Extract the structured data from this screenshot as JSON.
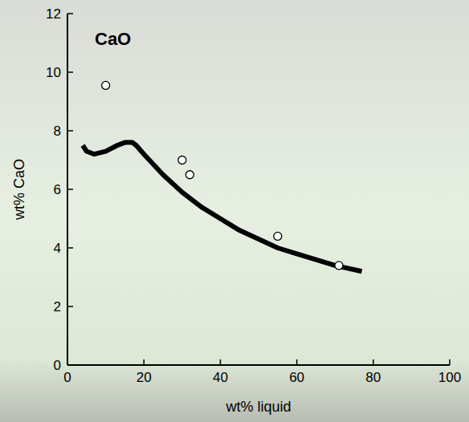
{
  "chart_data": {
    "type": "line",
    "title": "CaO",
    "x_label": "wt% liquid",
    "y_label": "wt% CaO",
    "xlim": [
      0,
      100
    ],
    "xticks": [
      0,
      20,
      40,
      60,
      80,
      100
    ],
    "ylim": [
      0,
      12
    ],
    "yticks": [
      0,
      2,
      4,
      6,
      8,
      10,
      12
    ],
    "grid": false,
    "series": [
      {
        "type": "line",
        "color": "#000000",
        "line_style": "solid",
        "x": [
          4,
          5,
          7,
          10,
          13,
          15,
          17,
          18,
          20,
          25,
          30,
          35,
          40,
          45,
          50,
          55,
          60,
          65,
          70,
          77
        ],
        "values": [
          7.5,
          7.3,
          7.2,
          7.3,
          7.5,
          7.6,
          7.6,
          7.5,
          7.2,
          6.5,
          5.9,
          5.4,
          5.0,
          4.6,
          4.3,
          4.0,
          3.8,
          3.6,
          3.4,
          3.2
        ]
      },
      {
        "type": "scatter",
        "color": "#ffffff",
        "marker": "circle",
        "x": [
          10,
          30,
          32,
          55,
          71
        ],
        "values": [
          9.55,
          7.0,
          6.5,
          4.4,
          3.4
        ]
      }
    ]
  }
}
